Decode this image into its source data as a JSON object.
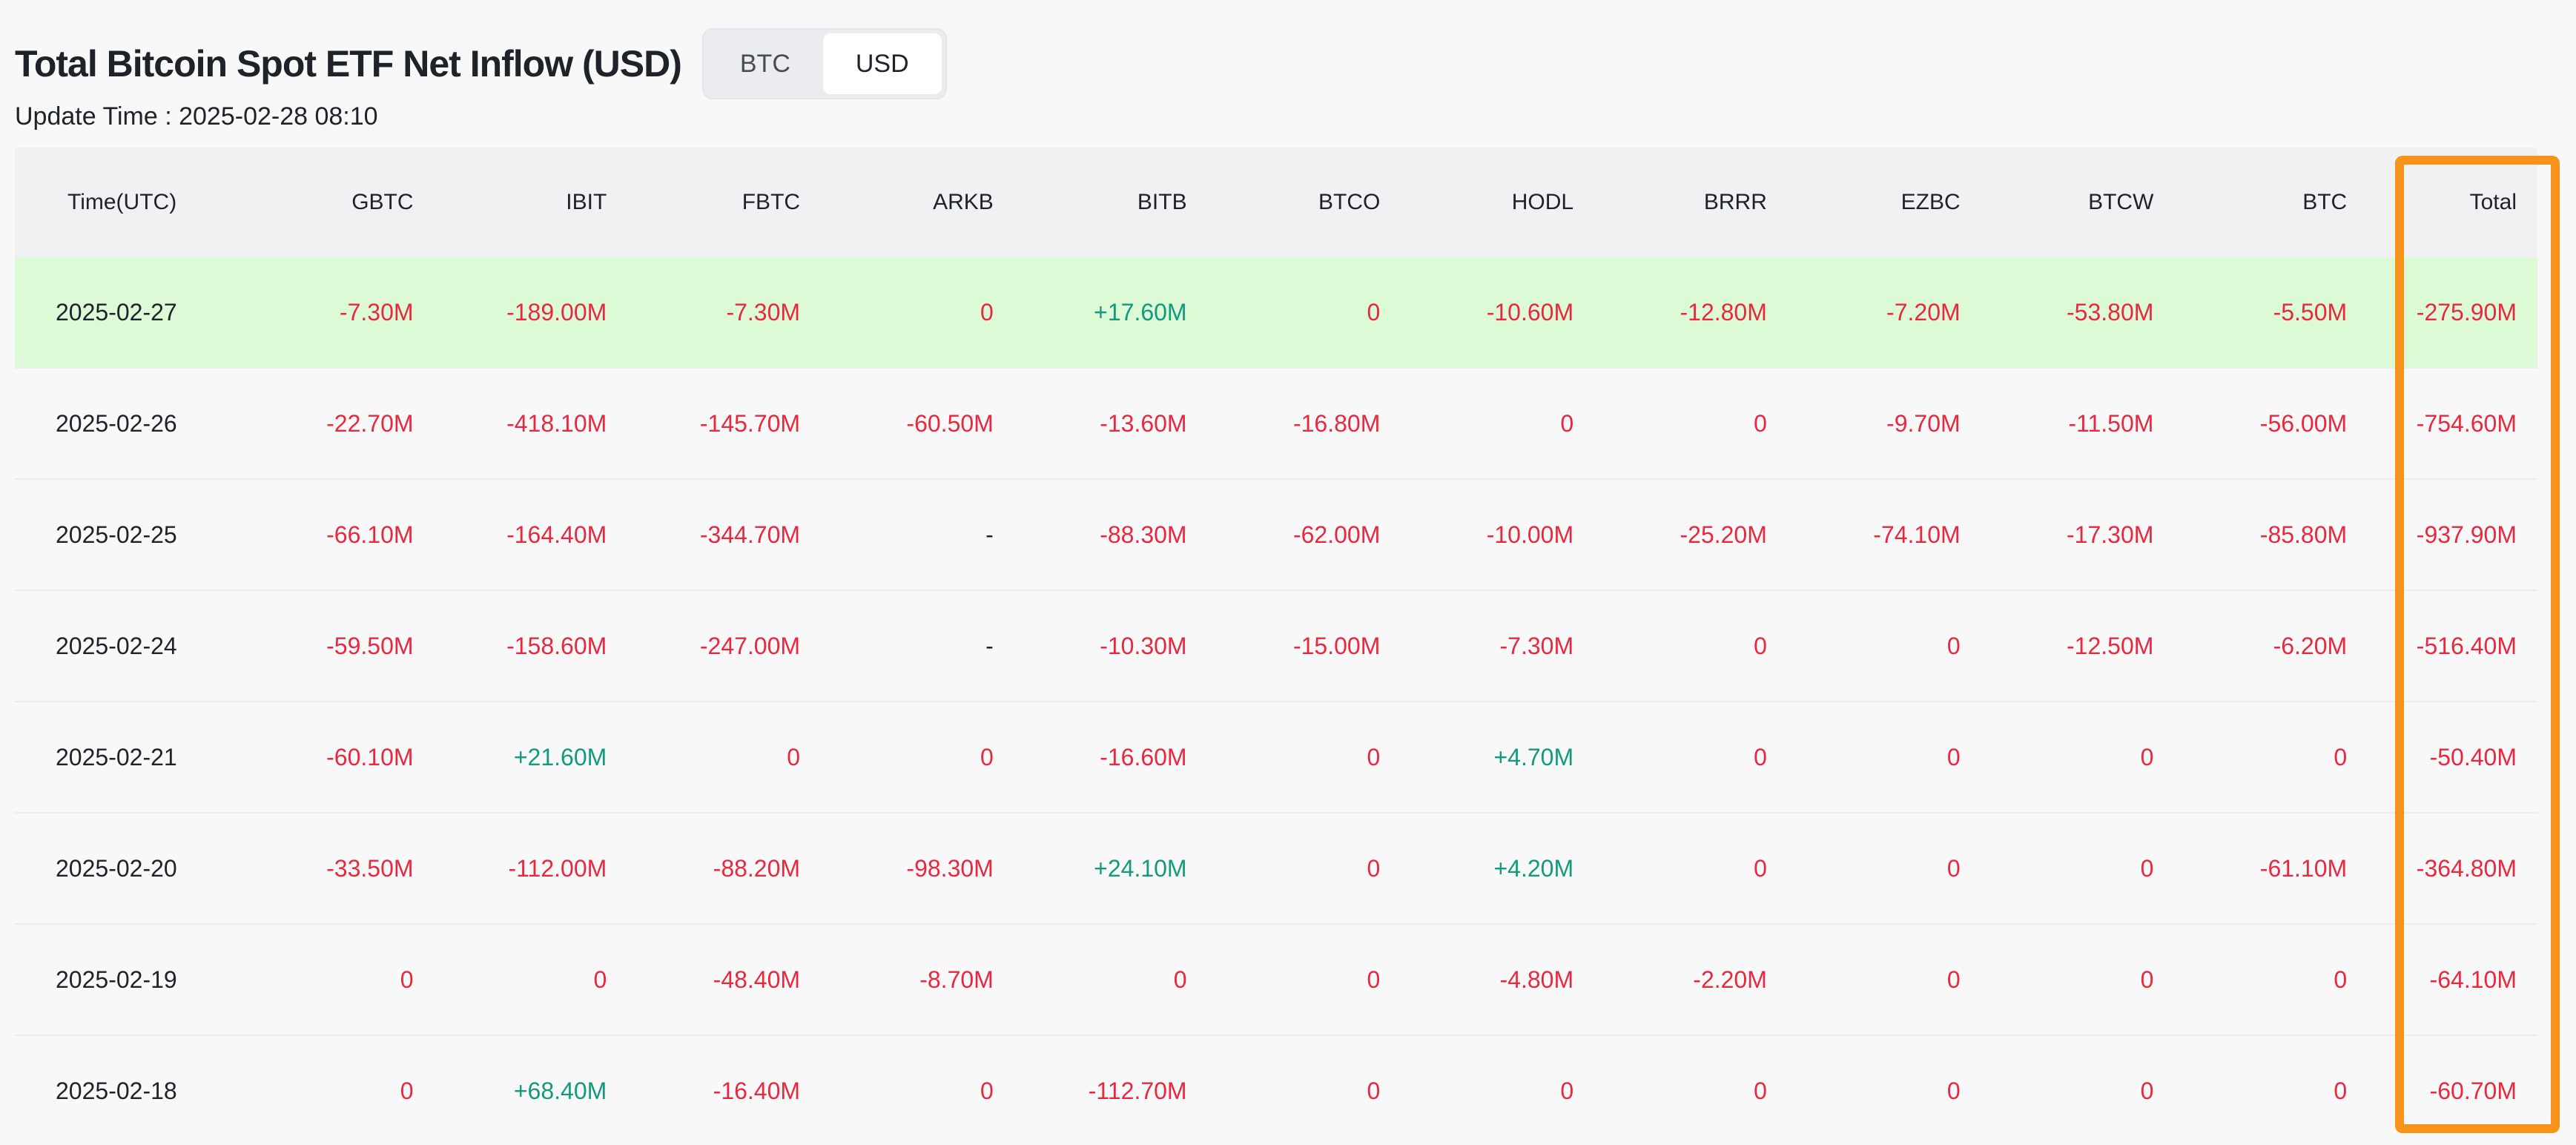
{
  "title": "Total Bitcoin Spot ETF Net Inflow (USD)",
  "toggle": {
    "options": [
      "BTC",
      "USD"
    ],
    "selected": "USD"
  },
  "update_time": {
    "label": "Update Time : ",
    "value": "2025-02-28 08:10"
  },
  "table": {
    "columns": [
      "Time(UTC)",
      "GBTC",
      "IBIT",
      "FBTC",
      "ARKB",
      "BITB",
      "BTCO",
      "HODL",
      "BRRR",
      "EZBC",
      "BTCW",
      "BTC",
      "Total"
    ],
    "rows": [
      [
        "2025-02-27",
        "-7.30M",
        "-189.00M",
        "-7.30M",
        "0",
        "+17.60M",
        "0",
        "-10.60M",
        "-12.80M",
        "-7.20M",
        "-53.80M",
        "-5.50M",
        "-275.90M"
      ],
      [
        "2025-02-26",
        "-22.70M",
        "-418.10M",
        "-145.70M",
        "-60.50M",
        "-13.60M",
        "-16.80M",
        "0",
        "0",
        "-9.70M",
        "-11.50M",
        "-56.00M",
        "-754.60M"
      ],
      [
        "2025-02-25",
        "-66.10M",
        "-164.40M",
        "-344.70M",
        "-",
        "-88.30M",
        "-62.00M",
        "-10.00M",
        "-25.20M",
        "-74.10M",
        "-17.30M",
        "-85.80M",
        "-937.90M"
      ],
      [
        "2025-02-24",
        "-59.50M",
        "-158.60M",
        "-247.00M",
        "-",
        "-10.30M",
        "-15.00M",
        "-7.30M",
        "0",
        "0",
        "-12.50M",
        "-6.20M",
        "-516.40M"
      ],
      [
        "2025-02-21",
        "-60.10M",
        "+21.60M",
        "0",
        "0",
        "-16.60M",
        "0",
        "+4.70M",
        "0",
        "0",
        "0",
        "0",
        "-50.40M"
      ],
      [
        "2025-02-20",
        "-33.50M",
        "-112.00M",
        "-88.20M",
        "-98.30M",
        "+24.10M",
        "0",
        "+4.20M",
        "0",
        "0",
        "0",
        "-61.10M",
        "-364.80M"
      ],
      [
        "2025-02-19",
        "0",
        "0",
        "-48.40M",
        "-8.70M",
        "0",
        "0",
        "-4.80M",
        "-2.20M",
        "0",
        "0",
        "0",
        "-64.10M"
      ],
      [
        "2025-02-18",
        "0",
        "+68.40M",
        "-16.40M",
        "0",
        "-112.70M",
        "0",
        "0",
        "0",
        "0",
        "0",
        "0",
        "-60.70M"
      ]
    ]
  },
  "colors": {
    "negative": "#e8283e",
    "positive": "#139a7e",
    "highlight_row": "#dcfad5",
    "annotation_box": "#f7931a"
  }
}
